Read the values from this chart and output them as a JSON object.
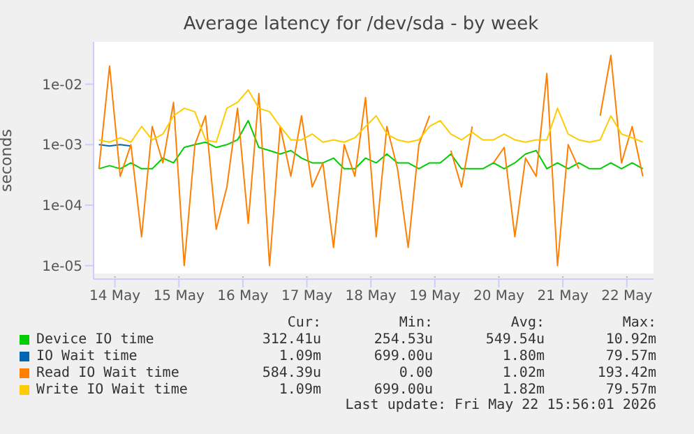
{
  "chart_data": {
    "type": "line",
    "title": "Average latency for /dev/sda - by week",
    "ylabel": "seconds",
    "log": "y",
    "grid": true,
    "legend": "bottom",
    "marker": "none",
    "line_style": "solid",
    "x": [
      "2026-05-13T18:00",
      "2026-05-13T22:00",
      "2026-05-14T02:00",
      "2026-05-14T06:00",
      "2026-05-14T10:00",
      "2026-05-14T14:00",
      "2026-05-14T18:00",
      "2026-05-14T22:00",
      "2026-05-15T02:00",
      "2026-05-15T06:00",
      "2026-05-15T10:00",
      "2026-05-15T14:00",
      "2026-05-15T18:00",
      "2026-05-15T22:00",
      "2026-05-16T02:00",
      "2026-05-16T06:00",
      "2026-05-16T10:00",
      "2026-05-16T14:00",
      "2026-05-16T18:00",
      "2026-05-16T22:00",
      "2026-05-17T02:00",
      "2026-05-17T06:00",
      "2026-05-17T10:00",
      "2026-05-17T14:00",
      "2026-05-17T18:00",
      "2026-05-17T22:00",
      "2026-05-18T02:00",
      "2026-05-18T06:00",
      "2026-05-18T10:00",
      "2026-05-18T14:00",
      "2026-05-18T18:00",
      "2026-05-18T22:00",
      "2026-05-19T02:00",
      "2026-05-19T06:00",
      "2026-05-19T10:00",
      "2026-05-19T14:00",
      "2026-05-19T18:00",
      "2026-05-19T22:00",
      "2026-05-20T02:00",
      "2026-05-20T06:00",
      "2026-05-20T10:00",
      "2026-05-20T14:00",
      "2026-05-20T18:00",
      "2026-05-20T22:00",
      "2026-05-21T02:00",
      "2026-05-21T06:00",
      "2026-05-21T10:00",
      "2026-05-21T14:00",
      "2026-05-21T18:00",
      "2026-05-21T22:00",
      "2026-05-22T02:00",
      "2026-05-22T06:00"
    ],
    "xlim": [
      "2026-05-13T16:00",
      "2026-05-22T10:00"
    ],
    "xticks": [
      {
        "value": "2026-05-14",
        "label": "14 May"
      },
      {
        "value": "2026-05-15",
        "label": "15 May"
      },
      {
        "value": "2026-05-16",
        "label": "16 May"
      },
      {
        "value": "2026-05-17",
        "label": "17 May"
      },
      {
        "value": "2026-05-18",
        "label": "18 May"
      },
      {
        "value": "2026-05-19",
        "label": "19 May"
      },
      {
        "value": "2026-05-20",
        "label": "20 May"
      },
      {
        "value": "2026-05-21",
        "label": "21 May"
      },
      {
        "value": "2026-05-22",
        "label": "22 May"
      }
    ],
    "ylim": [
      6e-06,
      0.05
    ],
    "yticks": [
      {
        "value": 1e-05,
        "label": "1e-05"
      },
      {
        "value": 0.0001,
        "label": "1e-04"
      },
      {
        "value": 0.001,
        "label": "1e-03"
      },
      {
        "value": 0.01,
        "label": "1e-02"
      }
    ],
    "series": [
      {
        "name": "Device IO time",
        "color": "#00cc00",
        "values": [
          0.0004,
          0.00045,
          0.0004,
          0.0005,
          0.0004,
          0.0004,
          0.0006,
          0.0005,
          0.0009,
          0.001,
          0.0011,
          0.0009,
          0.001,
          0.0012,
          0.0025,
          0.0009,
          0.0008,
          0.0007,
          0.0008,
          0.0006,
          0.0005,
          0.0005,
          0.0006,
          0.0004,
          0.0004,
          0.0006,
          0.0005,
          0.0007,
          0.0005,
          0.0005,
          0.0004,
          0.0005,
          0.0005,
          0.0007,
          0.0004,
          0.0004,
          0.0004,
          0.0005,
          0.0004,
          0.0005,
          0.0007,
          0.0008,
          0.0004,
          0.0005,
          0.0004,
          0.0005,
          0.0004,
          0.0004,
          0.0005,
          0.0004,
          0.0005,
          0.0004
        ]
      },
      {
        "name": "IO Wait time",
        "color": "#0066b3",
        "values": [
          0.001,
          0.00095,
          0.001,
          0.00095,
          null,
          null,
          null,
          null,
          null,
          null,
          null,
          null,
          null,
          null,
          null,
          null,
          null,
          null,
          null,
          null,
          null,
          null,
          null,
          null,
          null,
          null,
          null,
          null,
          null,
          null,
          null,
          null,
          null,
          null,
          null,
          null,
          null,
          null,
          null,
          null,
          null,
          null,
          null,
          null,
          null,
          null,
          null,
          null,
          null,
          null,
          null,
          null
        ]
      },
      {
        "name": "Read IO Wait time",
        "color": "#ff8000",
        "values": [
          0.0004,
          0.02,
          0.0003,
          0.001,
          3e-05,
          0.002,
          0.0005,
          0.005,
          1e-05,
          0.001,
          0.003,
          4e-05,
          0.0002,
          0.004,
          5e-05,
          0.007,
          1e-05,
          0.002,
          0.0003,
          0.003,
          0.0002,
          0.0005,
          2e-05,
          0.001,
          0.0003,
          0.006,
          3e-05,
          0.002,
          0.0004,
          2e-05,
          0.001,
          0.003,
          null,
          0.0008,
          0.0002,
          0.002,
          null,
          0.0005,
          0.0009,
          3e-05,
          0.0006,
          0.0003,
          0.015,
          1e-05,
          0.001,
          0.0004,
          null,
          0.003,
          0.03,
          0.0005,
          0.002,
          0.0003
        ]
      },
      {
        "name": "Write IO Wait time",
        "color": "#ffcc00",
        "values": [
          0.0012,
          0.0011,
          0.0013,
          0.0011,
          0.002,
          0.0012,
          0.0015,
          0.003,
          0.004,
          0.0035,
          0.0012,
          0.0011,
          0.004,
          0.005,
          0.008,
          0.004,
          0.0035,
          0.002,
          0.0012,
          0.0012,
          0.0015,
          0.0011,
          0.0012,
          0.0011,
          0.0013,
          0.002,
          0.003,
          0.0015,
          0.0012,
          0.0011,
          0.0012,
          0.002,
          0.0025,
          0.0015,
          0.0012,
          0.0016,
          0.0012,
          0.0012,
          0.0015,
          0.0012,
          0.0011,
          0.0012,
          0.0012,
          0.004,
          0.0015,
          0.0012,
          0.0011,
          0.0012,
          0.003,
          0.0015,
          0.0013,
          0.0011
        ]
      }
    ],
    "annotations": [
      "Cur:",
      "Min:",
      "Avg:",
      "Max:",
      "312.41u",
      "254.53u",
      "549.54u",
      "10.92m",
      "1.09m",
      "699.00u",
      "1.80m",
      "79.57m",
      "584.39u",
      "0.00",
      "1.02m",
      "193.42m",
      "1.09m",
      "699.00u",
      "1.82m",
      "79.57m",
      "Last update: Fri May 22 15:56:01 2026"
    ]
  }
}
